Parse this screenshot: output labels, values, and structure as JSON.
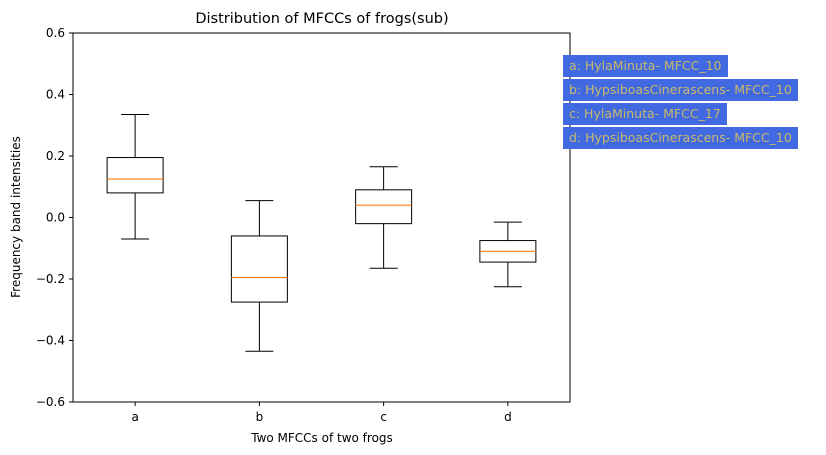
{
  "colors": {
    "box_edge": "#000000",
    "median": "#ff7f0e",
    "legend_bg": "#4169e1",
    "legend_text": "#c8b86a"
  },
  "chart_data": {
    "type": "box",
    "title": "Distribution of MFCCs of frogs(sub)",
    "xlabel": "Two MFCCs of two frogs",
    "ylabel": "Frequency band intensities",
    "ylim": [
      -0.6,
      0.6
    ],
    "yticks": [
      -0.6,
      -0.4,
      -0.2,
      0.0,
      0.2,
      0.4,
      0.6
    ],
    "ytick_labels": [
      "−0.6",
      "−0.4",
      "−0.2",
      "0.0",
      "0.2",
      "0.4",
      "0.6"
    ],
    "categories": [
      "a",
      "b",
      "c",
      "d"
    ],
    "grid": false,
    "legend_position": "outside-top-right",
    "boxes": [
      {
        "category": "a",
        "whisker_low": -0.07,
        "q1": 0.08,
        "median": 0.125,
        "q3": 0.195,
        "whisker_high": 0.335
      },
      {
        "category": "b",
        "whisker_low": -0.435,
        "q1": -0.275,
        "median": -0.195,
        "q3": -0.06,
        "whisker_high": 0.055
      },
      {
        "category": "c",
        "whisker_low": -0.165,
        "q1": -0.02,
        "median": 0.04,
        "q3": 0.09,
        "whisker_high": 0.165
      },
      {
        "category": "d",
        "whisker_low": -0.225,
        "q1": -0.145,
        "median": -0.11,
        "q3": -0.075,
        "whisker_high": -0.015
      }
    ],
    "legend": [
      "a: HylaMinuta- MFCC_10",
      "b: HypsiboasCinerascens- MFCC_10",
      "c: HylaMinuta- MFCC_17",
      "d: HypsiboasCinerascens- MFCC_10"
    ]
  }
}
